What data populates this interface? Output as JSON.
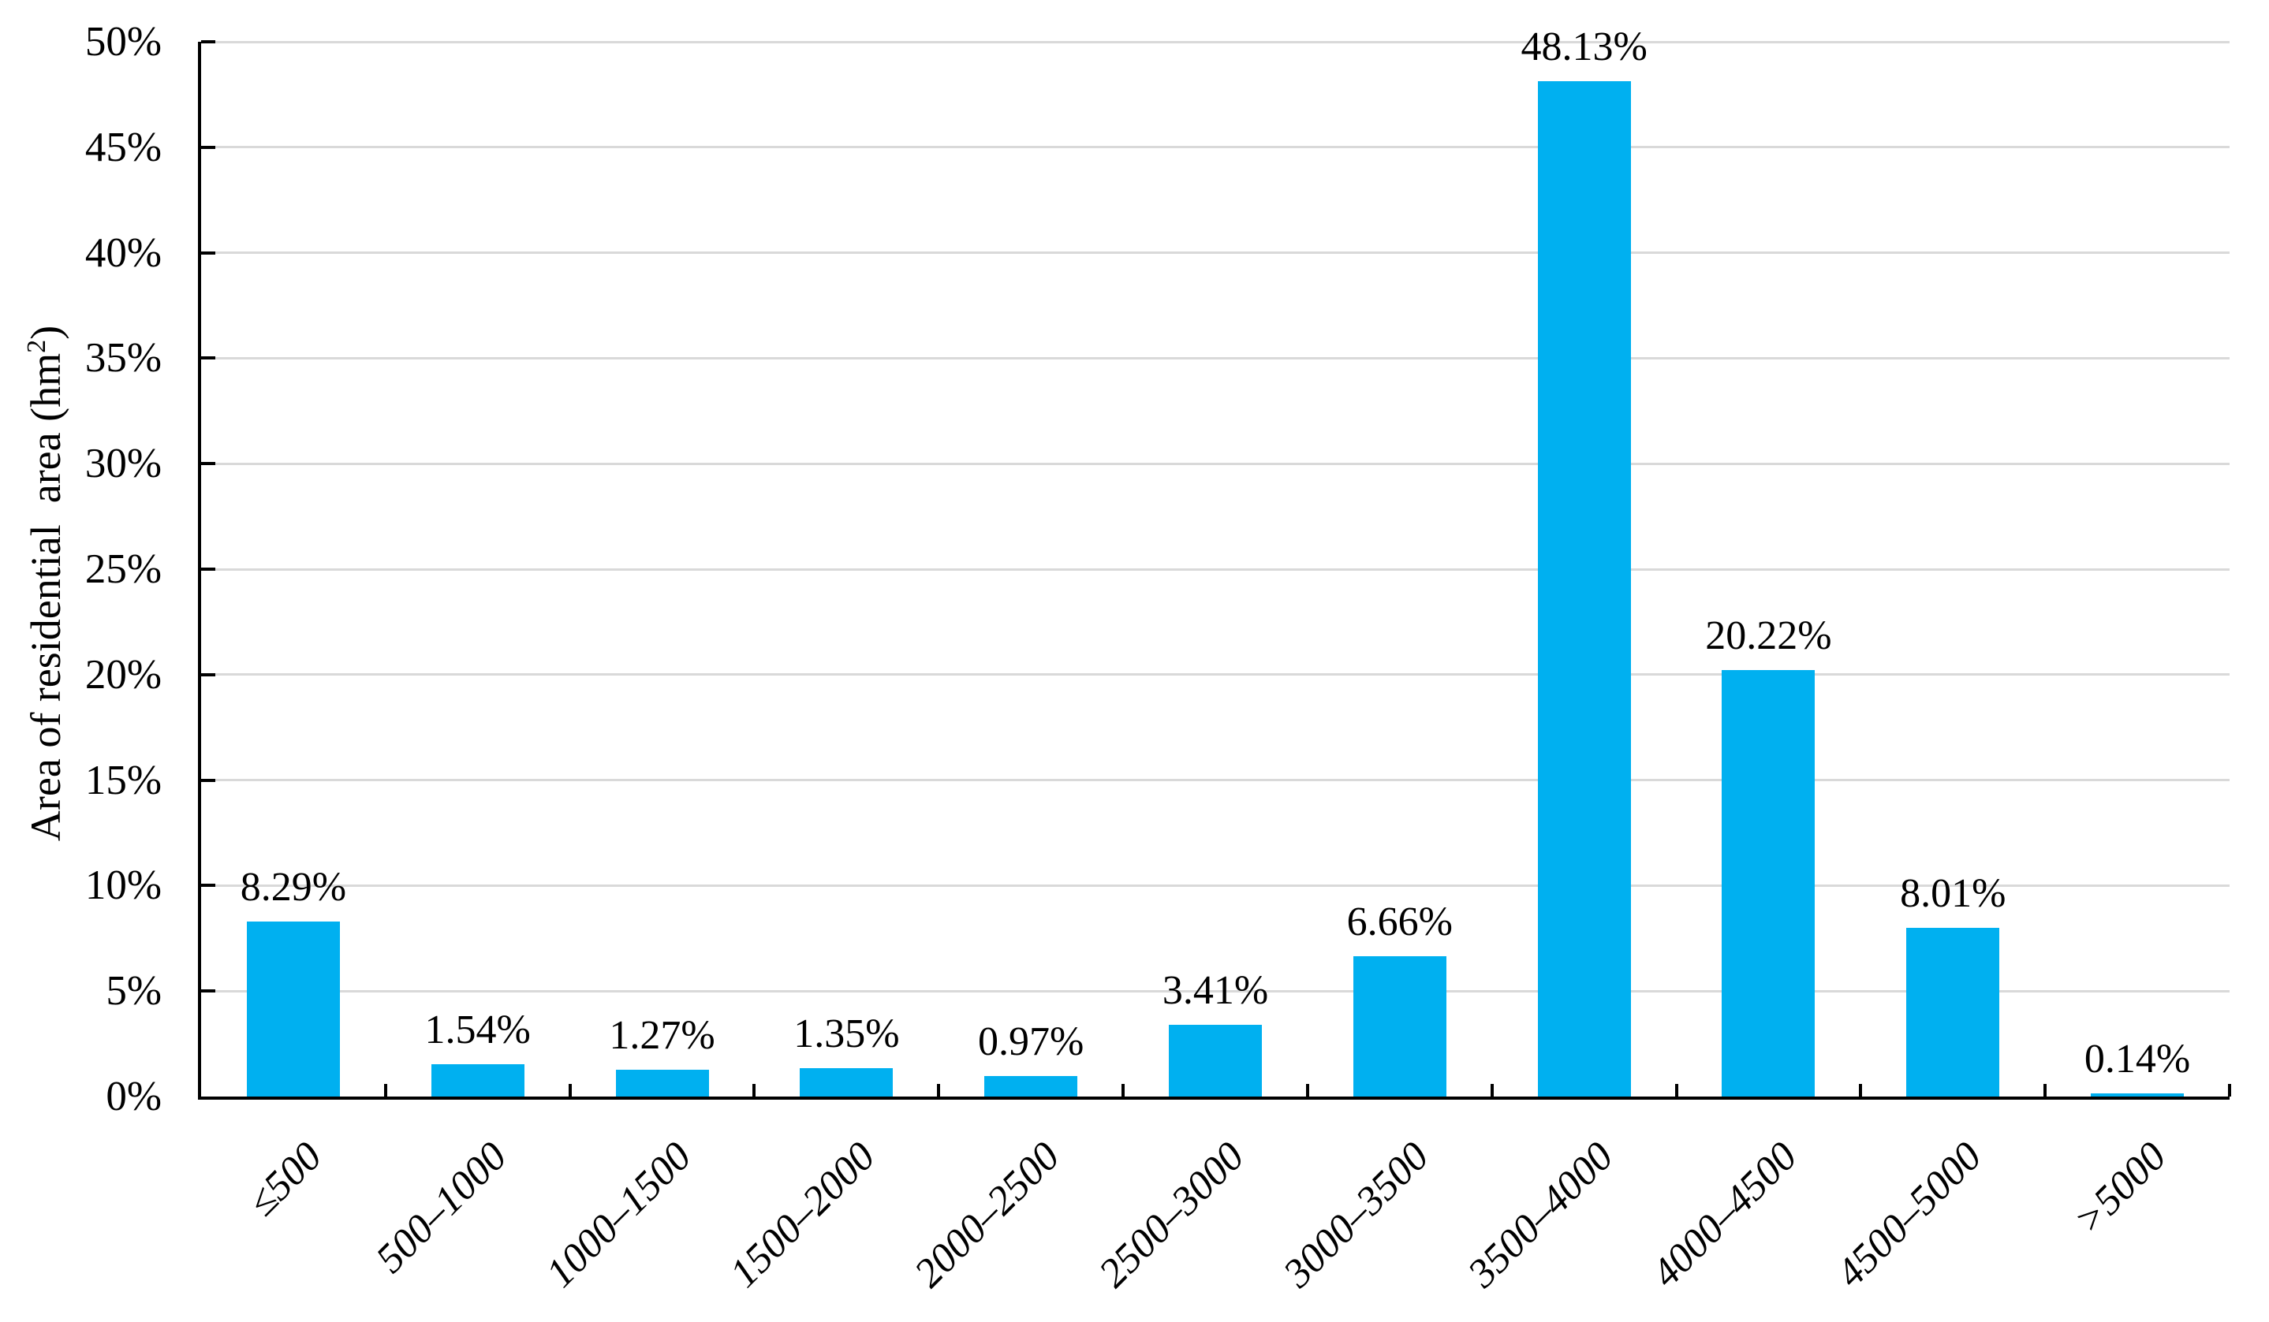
{
  "chart_data": {
    "type": "bar",
    "title": "",
    "categories": [
      "≤500",
      "500–1000",
      "1000–1500",
      "1500–2000",
      "2000–2500",
      "2500–3000",
      "3000–3500",
      "3500–4000",
      "4000–4500",
      "4500–5000",
      ">5000"
    ],
    "values": [
      8.29,
      1.54,
      1.27,
      1.35,
      0.97,
      3.41,
      6.66,
      48.13,
      20.22,
      8.01,
      0.14
    ],
    "value_labels": [
      "8.29%",
      "1.54%",
      "1.27%",
      "1.35%",
      "0.97%",
      "3.41%",
      "6.66%",
      "48.13%",
      "20.22%",
      "8.01%",
      "0.14%"
    ],
    "xlabel": "",
    "ylabel_parts": {
      "base": "Area of residential  area (hm",
      "sup": "2",
      "suffix": ")"
    },
    "y_ticks": [
      "0%",
      "5%",
      "10%",
      "15%",
      "20%",
      "25%",
      "30%",
      "35%",
      "40%",
      "45%",
      "50%"
    ],
    "ylim": [
      0,
      50
    ],
    "y_step": 5,
    "grid": true,
    "legend": false,
    "bar_color": "#00B0F0",
    "gridline_color": "#D9D9D9",
    "axis_color": "#000000",
    "text_color": "#000000"
  }
}
